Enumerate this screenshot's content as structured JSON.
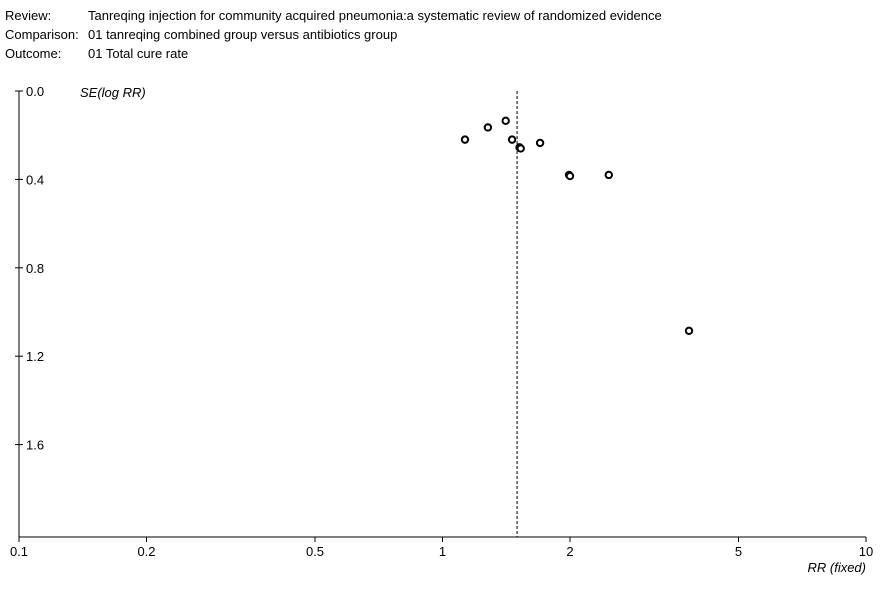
{
  "header": {
    "review_label": "Review:",
    "review_value": "Tanreqing injection for community acquired pneumonia:a systematic review of randomized evidence",
    "comparison_label": "Comparison:",
    "comparison_value": "01 tanreqing combined group versus antibiotics group",
    "outcome_label": "Outcome:",
    "outcome_value": "01 Total cure rate"
  },
  "chart_data": {
    "type": "scatter",
    "subtype": "funnel-plot",
    "ylabel": "SE(log RR)",
    "xlabel": "RR (fixed)",
    "x_scale": "log",
    "xlim": [
      0.1,
      10
    ],
    "ylim": [
      0.0,
      2.0
    ],
    "y_inverted": true,
    "xticks": [
      0.1,
      0.2,
      0.5,
      1,
      2,
      5,
      10
    ],
    "xtick_labels": [
      "0.1",
      "0.2",
      "0.5",
      "1",
      "2",
      "5",
      "10"
    ],
    "yticks": [
      0.0,
      0.4,
      0.8,
      1.2,
      1.6
    ],
    "ytick_labels": [
      "0.0",
      "0.4",
      "0.8",
      "1.2",
      "1.6"
    ],
    "pooled_rr": 1.5,
    "points": [
      {
        "rr": 1.13,
        "se": 0.22
      },
      {
        "rr": 1.28,
        "se": 0.165
      },
      {
        "rr": 1.41,
        "se": 0.135
      },
      {
        "rr": 1.46,
        "se": 0.22
      },
      {
        "rr": 1.52,
        "se": 0.255
      },
      {
        "rr": 1.53,
        "se": 0.26
      },
      {
        "rr": 1.7,
        "se": 0.235
      },
      {
        "rr": 1.99,
        "se": 0.38
      },
      {
        "rr": 2.0,
        "se": 0.385
      },
      {
        "rr": 2.47,
        "se": 0.38
      },
      {
        "rr": 3.82,
        "se": 1.085
      }
    ]
  }
}
